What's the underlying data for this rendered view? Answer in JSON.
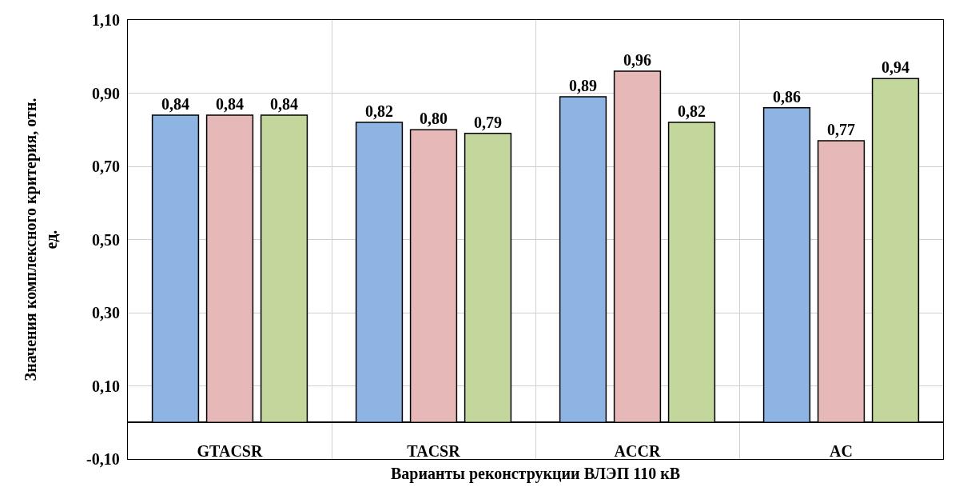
{
  "chart_data": {
    "type": "bar",
    "xlabel": "Варианты реконструкции ВЛЭП 110 кВ",
    "ylabel": "Значения комплексного критерия, отн. ед.",
    "categories": [
      "GTACSR",
      "TACSR",
      "ACCR",
      "AC"
    ],
    "series": [
      {
        "color": "#8eb4e3",
        "values": [
          0.84,
          0.82,
          0.89,
          0.86
        ],
        "value_labels": [
          "0,84",
          "0,82",
          "0,89",
          "0,86"
        ]
      },
      {
        "color": "#e6b9b8",
        "values": [
          0.84,
          0.8,
          0.96,
          0.77
        ],
        "value_labels": [
          "0,84",
          "0,80",
          "0,96",
          "0,77"
        ]
      },
      {
        "color": "#c3d69b",
        "values": [
          0.84,
          0.79,
          0.82,
          0.94
        ],
        "value_labels": [
          "0,84",
          "0,79",
          "0,82",
          "0,94"
        ]
      }
    ],
    "ylim": [
      -0.1,
      1.1
    ],
    "yticks": [
      {
        "value": -0.1,
        "label": "-0,10"
      },
      {
        "value": 0.1,
        "label": "0,10"
      },
      {
        "value": 0.3,
        "label": "0,30"
      },
      {
        "value": 0.5,
        "label": "0,50"
      },
      {
        "value": 0.7,
        "label": "0,70"
      },
      {
        "value": 0.9,
        "label": "0,90"
      },
      {
        "value": 1.1,
        "label": "1,10"
      }
    ],
    "grid": true
  }
}
